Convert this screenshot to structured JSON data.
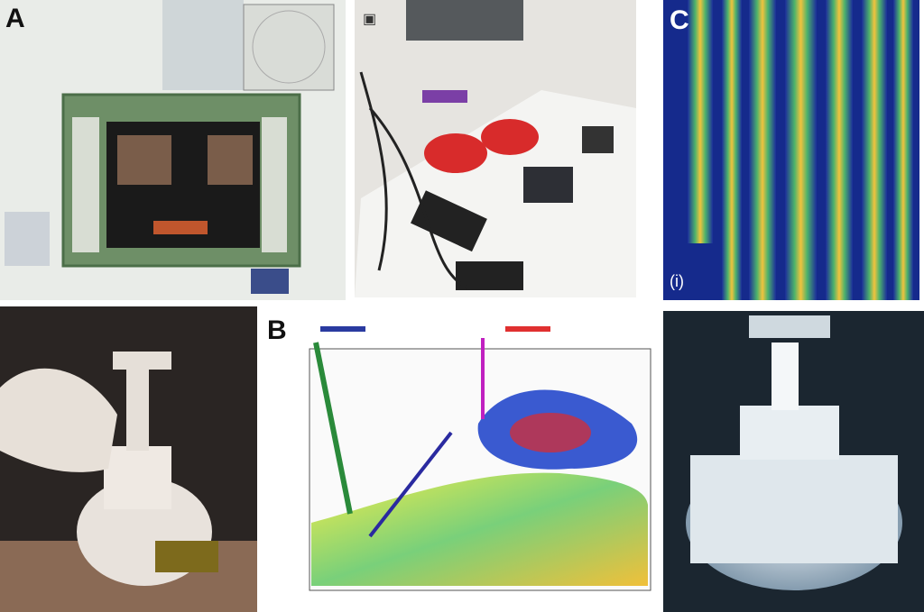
{
  "panels": {
    "a": {
      "label": "A"
    },
    "b": {
      "label": "B"
    },
    "c": {
      "label": "C",
      "inset_label": "(i)"
    }
  }
}
